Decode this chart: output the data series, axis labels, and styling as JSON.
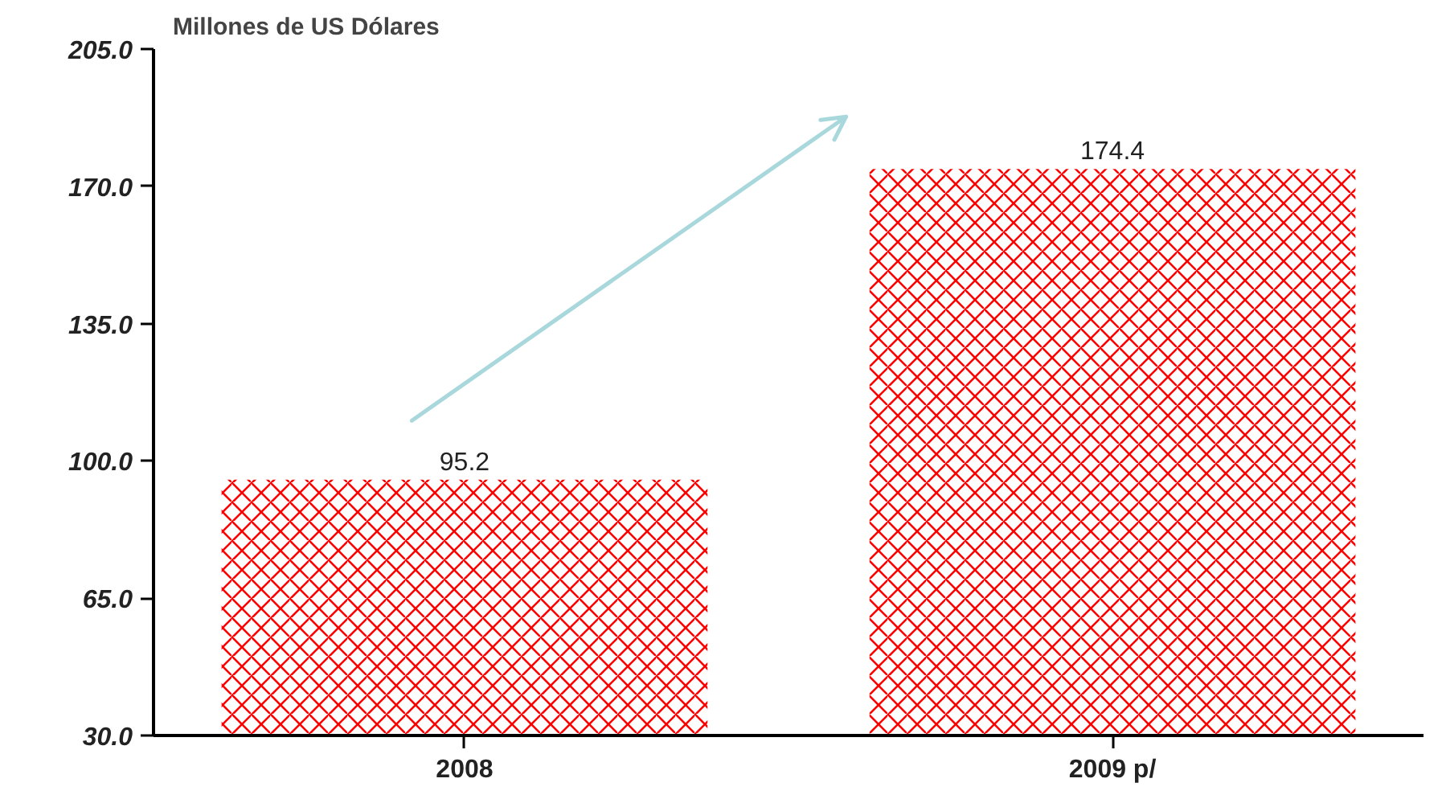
{
  "chart_data": {
    "type": "bar",
    "ylabel": "Millones de US Dólares",
    "categories": [
      "2008",
      "2009 p/"
    ],
    "values": [
      95.2,
      174.4
    ],
    "color": "#ff0000",
    "ylim": [
      30,
      205
    ],
    "yticks": [
      {
        "value": 30,
        "label": "30.0"
      },
      {
        "value": 65,
        "label": "65.0"
      },
      {
        "value": 100,
        "label": "100.0"
      },
      {
        "value": 135,
        "label": "135.0"
      },
      {
        "value": 170,
        "label": "170.0"
      },
      {
        "value": 205,
        "label": "205.0"
      }
    ],
    "data_labels": true,
    "grid": false
  }
}
